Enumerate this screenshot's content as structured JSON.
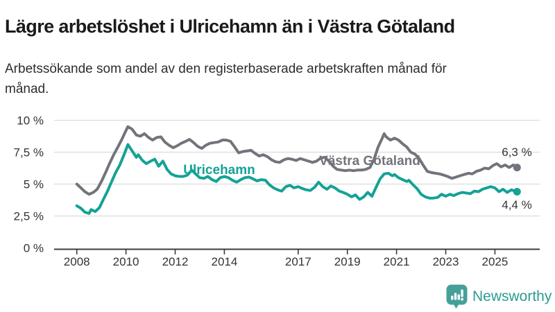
{
  "header": {
    "title": "Lägre arbetslöshet i Ulricehamn än i Västra Götaland",
    "subtitle": "Arbetssökande som andel av den registerbaserade arbetskraften månad för månad."
  },
  "footer": {
    "brand": "Newsworthy"
  },
  "colors": {
    "ulricehamn": "#14a296",
    "vastra_gotaland": "#73737b",
    "grid": "#dcdcdc",
    "axis": "#3c3c3c",
    "text": "#333333",
    "brand_text": "#2a9c91",
    "brand_icon": "#45a099"
  },
  "chart_data": {
    "type": "line",
    "title": "Lägre arbetslöshet i Ulricehamn än i Västra Götaland",
    "subtitle": "Arbetssökande som andel av den registerbaserade arbetskraften månad för månad.",
    "unit": "percent of registered labour force, monthly",
    "grid": true,
    "legend_position": "inline-labels",
    "x_axis": {
      "tick_labels": [
        "2008",
        "2010",
        "2012",
        "2014",
        "2017",
        "2019",
        "2021",
        "2023",
        "2025"
      ],
      "tick_values": [
        2008,
        2010,
        2012,
        2014,
        2017,
        2019,
        2021,
        2023,
        2025
      ],
      "range": [
        2007.1,
        2026.8
      ]
    },
    "y_axis": {
      "tick_labels": [
        "0 %",
        "2,5 %",
        "5 %",
        "7,5 %",
        "10 %"
      ],
      "tick_values": [
        0,
        2.5,
        5,
        7.5,
        10
      ],
      "range": [
        0,
        10
      ]
    },
    "series": [
      {
        "id": "vastra-gotaland",
        "name": "Västra Götaland",
        "color": "#73737b",
        "end_label": "6,3 %",
        "end_value": 6.3,
        "points": [
          [
            2008.0,
            5.0
          ],
          [
            2008.17,
            4.7
          ],
          [
            2008.33,
            4.4
          ],
          [
            2008.5,
            4.2
          ],
          [
            2008.67,
            4.35
          ],
          [
            2008.83,
            4.6
          ],
          [
            2009.0,
            5.2
          ],
          [
            2009.17,
            5.9
          ],
          [
            2009.33,
            6.6
          ],
          [
            2009.5,
            7.3
          ],
          [
            2009.67,
            7.9
          ],
          [
            2009.83,
            8.5
          ],
          [
            2010.0,
            9.2
          ],
          [
            2010.08,
            9.5
          ],
          [
            2010.25,
            9.3
          ],
          [
            2010.42,
            8.85
          ],
          [
            2010.58,
            8.75
          ],
          [
            2010.75,
            8.95
          ],
          [
            2010.92,
            8.65
          ],
          [
            2011.08,
            8.45
          ],
          [
            2011.25,
            8.65
          ],
          [
            2011.42,
            8.7
          ],
          [
            2011.58,
            8.3
          ],
          [
            2011.75,
            8.05
          ],
          [
            2011.92,
            7.85
          ],
          [
            2012.08,
            8.0
          ],
          [
            2012.25,
            8.2
          ],
          [
            2012.42,
            8.35
          ],
          [
            2012.58,
            8.5
          ],
          [
            2012.75,
            8.25
          ],
          [
            2012.92,
            7.95
          ],
          [
            2013.08,
            7.8
          ],
          [
            2013.25,
            8.05
          ],
          [
            2013.42,
            8.2
          ],
          [
            2013.58,
            8.25
          ],
          [
            2013.75,
            8.3
          ],
          [
            2013.92,
            8.45
          ],
          [
            2014.08,
            8.45
          ],
          [
            2014.25,
            8.35
          ],
          [
            2014.42,
            7.9
          ],
          [
            2014.58,
            7.45
          ],
          [
            2014.75,
            7.55
          ],
          [
            2014.92,
            7.6
          ],
          [
            2015.08,
            7.65
          ],
          [
            2015.25,
            7.4
          ],
          [
            2015.42,
            7.2
          ],
          [
            2015.58,
            7.3
          ],
          [
            2015.75,
            7.15
          ],
          [
            2015.92,
            6.9
          ],
          [
            2016.08,
            6.75
          ],
          [
            2016.25,
            6.7
          ],
          [
            2016.42,
            6.9
          ],
          [
            2016.58,
            7.0
          ],
          [
            2016.75,
            6.95
          ],
          [
            2016.92,
            6.85
          ],
          [
            2017.08,
            7.0
          ],
          [
            2017.25,
            6.9
          ],
          [
            2017.42,
            6.8
          ],
          [
            2017.58,
            6.7
          ],
          [
            2017.75,
            6.8
          ],
          [
            2017.92,
            7.05
          ],
          [
            2018.08,
            7.1
          ],
          [
            2018.25,
            6.8
          ],
          [
            2018.42,
            6.4
          ],
          [
            2018.58,
            6.15
          ],
          [
            2018.75,
            6.1
          ],
          [
            2018.92,
            6.05
          ],
          [
            2019.08,
            6.1
          ],
          [
            2019.25,
            6.05
          ],
          [
            2019.42,
            6.1
          ],
          [
            2019.58,
            6.1
          ],
          [
            2019.75,
            6.15
          ],
          [
            2019.92,
            6.3
          ],
          [
            2020.08,
            6.9
          ],
          [
            2020.25,
            7.9
          ],
          [
            2020.42,
            8.6
          ],
          [
            2020.5,
            8.95
          ],
          [
            2020.58,
            8.7
          ],
          [
            2020.75,
            8.45
          ],
          [
            2020.92,
            8.6
          ],
          [
            2021.08,
            8.45
          ],
          [
            2021.25,
            8.15
          ],
          [
            2021.42,
            7.9
          ],
          [
            2021.58,
            7.5
          ],
          [
            2021.75,
            7.35
          ],
          [
            2021.92,
            7.0
          ],
          [
            2022.08,
            6.5
          ],
          [
            2022.25,
            6.0
          ],
          [
            2022.42,
            5.9
          ],
          [
            2022.58,
            5.85
          ],
          [
            2022.75,
            5.8
          ],
          [
            2022.92,
            5.7
          ],
          [
            2023.08,
            5.6
          ],
          [
            2023.25,
            5.45
          ],
          [
            2023.42,
            5.55
          ],
          [
            2023.58,
            5.65
          ],
          [
            2023.75,
            5.75
          ],
          [
            2023.92,
            5.85
          ],
          [
            2024.08,
            5.8
          ],
          [
            2024.25,
            6.0
          ],
          [
            2024.42,
            6.1
          ],
          [
            2024.58,
            6.25
          ],
          [
            2024.75,
            6.2
          ],
          [
            2024.92,
            6.45
          ],
          [
            2025.08,
            6.6
          ],
          [
            2025.25,
            6.35
          ],
          [
            2025.42,
            6.5
          ],
          [
            2025.58,
            6.3
          ],
          [
            2025.75,
            6.5
          ],
          [
            2025.9,
            6.3
          ]
        ]
      },
      {
        "id": "ulricehamn",
        "name": "Ulricehamn",
        "color": "#14a296",
        "end_label": "4,4 %",
        "end_value": 4.4,
        "points": [
          [
            2008.0,
            3.3
          ],
          [
            2008.17,
            3.1
          ],
          [
            2008.33,
            2.8
          ],
          [
            2008.5,
            2.7
          ],
          [
            2008.58,
            3.0
          ],
          [
            2008.75,
            2.85
          ],
          [
            2008.92,
            3.15
          ],
          [
            2009.08,
            3.8
          ],
          [
            2009.25,
            4.45
          ],
          [
            2009.42,
            5.2
          ],
          [
            2009.58,
            5.9
          ],
          [
            2009.75,
            6.5
          ],
          [
            2009.92,
            7.3
          ],
          [
            2010.08,
            8.1
          ],
          [
            2010.25,
            7.6
          ],
          [
            2010.42,
            7.1
          ],
          [
            2010.5,
            7.3
          ],
          [
            2010.67,
            6.85
          ],
          [
            2010.83,
            6.6
          ],
          [
            2011.0,
            6.8
          ],
          [
            2011.17,
            6.95
          ],
          [
            2011.33,
            6.4
          ],
          [
            2011.5,
            6.8
          ],
          [
            2011.67,
            6.15
          ],
          [
            2011.83,
            5.8
          ],
          [
            2012.0,
            5.65
          ],
          [
            2012.17,
            5.6
          ],
          [
            2012.33,
            5.6
          ],
          [
            2012.5,
            5.7
          ],
          [
            2012.67,
            6.1
          ],
          [
            2012.83,
            5.8
          ],
          [
            2013.0,
            5.5
          ],
          [
            2013.17,
            5.45
          ],
          [
            2013.33,
            5.6
          ],
          [
            2013.5,
            5.35
          ],
          [
            2013.67,
            5.2
          ],
          [
            2013.83,
            5.5
          ],
          [
            2014.0,
            5.6
          ],
          [
            2014.17,
            5.5
          ],
          [
            2014.33,
            5.3
          ],
          [
            2014.5,
            5.15
          ],
          [
            2014.67,
            5.35
          ],
          [
            2014.83,
            5.5
          ],
          [
            2015.0,
            5.55
          ],
          [
            2015.17,
            5.4
          ],
          [
            2015.33,
            5.25
          ],
          [
            2015.5,
            5.35
          ],
          [
            2015.67,
            5.3
          ],
          [
            2015.83,
            4.95
          ],
          [
            2016.0,
            4.7
          ],
          [
            2016.17,
            4.55
          ],
          [
            2016.33,
            4.45
          ],
          [
            2016.5,
            4.8
          ],
          [
            2016.67,
            4.9
          ],
          [
            2016.83,
            4.7
          ],
          [
            2017.0,
            4.8
          ],
          [
            2017.17,
            4.65
          ],
          [
            2017.33,
            4.55
          ],
          [
            2017.5,
            4.5
          ],
          [
            2017.67,
            4.75
          ],
          [
            2017.83,
            5.15
          ],
          [
            2018.0,
            4.8
          ],
          [
            2018.17,
            4.6
          ],
          [
            2018.33,
            4.85
          ],
          [
            2018.5,
            4.7
          ],
          [
            2018.67,
            4.45
          ],
          [
            2018.83,
            4.35
          ],
          [
            2019.0,
            4.2
          ],
          [
            2019.17,
            4.0
          ],
          [
            2019.33,
            4.15
          ],
          [
            2019.5,
            3.8
          ],
          [
            2019.67,
            4.0
          ],
          [
            2019.83,
            4.35
          ],
          [
            2020.0,
            4.05
          ],
          [
            2020.17,
            4.75
          ],
          [
            2020.33,
            5.4
          ],
          [
            2020.5,
            5.8
          ],
          [
            2020.67,
            5.85
          ],
          [
            2020.83,
            5.65
          ],
          [
            2020.92,
            5.75
          ],
          [
            2021.08,
            5.5
          ],
          [
            2021.25,
            5.35
          ],
          [
            2021.42,
            5.2
          ],
          [
            2021.5,
            5.3
          ],
          [
            2021.67,
            4.95
          ],
          [
            2021.83,
            4.65
          ],
          [
            2022.0,
            4.2
          ],
          [
            2022.17,
            4.0
          ],
          [
            2022.33,
            3.9
          ],
          [
            2022.5,
            3.9
          ],
          [
            2022.67,
            3.95
          ],
          [
            2022.83,
            4.2
          ],
          [
            2023.0,
            4.05
          ],
          [
            2023.17,
            4.2
          ],
          [
            2023.33,
            4.1
          ],
          [
            2023.5,
            4.25
          ],
          [
            2023.67,
            4.35
          ],
          [
            2023.83,
            4.3
          ],
          [
            2024.0,
            4.25
          ],
          [
            2024.17,
            4.45
          ],
          [
            2024.33,
            4.4
          ],
          [
            2024.5,
            4.6
          ],
          [
            2024.67,
            4.7
          ],
          [
            2024.83,
            4.8
          ],
          [
            2025.0,
            4.7
          ],
          [
            2025.17,
            4.4
          ],
          [
            2025.33,
            4.6
          ],
          [
            2025.5,
            4.35
          ],
          [
            2025.67,
            4.55
          ],
          [
            2025.9,
            4.4
          ]
        ]
      }
    ]
  }
}
